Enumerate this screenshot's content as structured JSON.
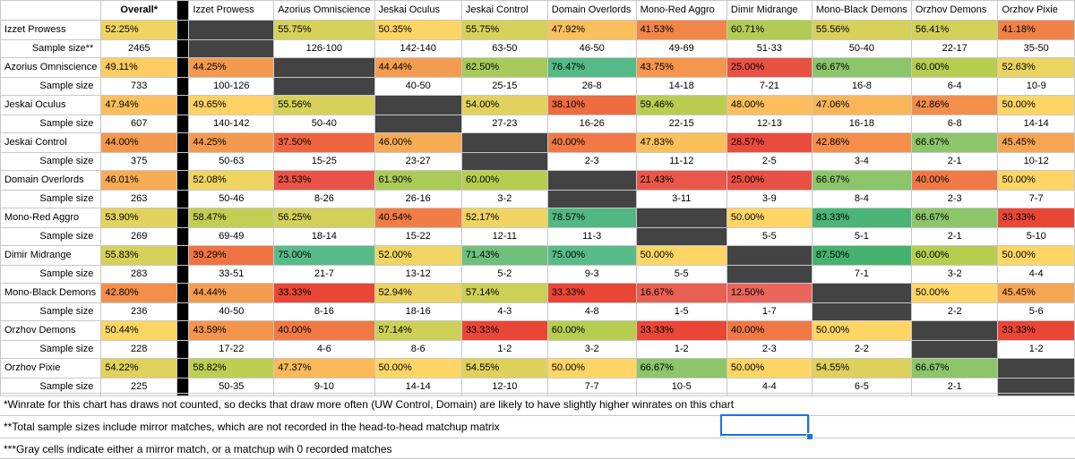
{
  "overall_header": "Overall*",
  "sample_label_first": "Sample size**",
  "sample_label": "Sample size",
  "decks": [
    "Izzet Prowess",
    "Azorius Omniscience",
    "Jeskai Oculus",
    "Jeskai Control",
    "Domain Overlords",
    "Mono-Red Aggro",
    "Dimir Midrange",
    "Mono-Black Demons",
    "Orzhov Demons",
    "Orzhov Pixie"
  ],
  "rows": [
    {
      "name": "Izzet Prowess",
      "overall": "52.25%",
      "sample": "2465",
      "wr": [
        null,
        "55.75%",
        "50.35%",
        "55.75%",
        "47.92%",
        "41.53%",
        "60.71%",
        "55.56%",
        "56.41%",
        "41.18%"
      ],
      "n": [
        null,
        "126-100",
        "142-140",
        "63-50",
        "46-50",
        "49-69",
        "51-33",
        "50-40",
        "22-17",
        "35-50"
      ]
    },
    {
      "name": "Azorius Omniscience",
      "overall": "49.11%",
      "sample": "733",
      "wr": [
        "44.25%",
        null,
        "44.44%",
        "62.50%",
        "76.47%",
        "43.75%",
        "25.00%",
        "66.67%",
        "60.00%",
        "52.63%"
      ],
      "n": [
        "100-126",
        null,
        "40-50",
        "25-15",
        "26-8",
        "14-18",
        "7-21",
        "16-8",
        "6-4",
        "10-9"
      ]
    },
    {
      "name": "Jeskai Oculus",
      "overall": "47.94%",
      "sample": "607",
      "wr": [
        "49.65%",
        "55.56%",
        null,
        "54.00%",
        "38.10%",
        "59.46%",
        "48.00%",
        "47.06%",
        "42.86%",
        "50.00%"
      ],
      "n": [
        "140-142",
        "50-40",
        null,
        "27-23",
        "16-26",
        "22-15",
        "12-13",
        "16-18",
        "6-8",
        "14-14"
      ]
    },
    {
      "name": "Jeskai Control",
      "overall": "44.00%",
      "sample": "375",
      "wr": [
        "44.25%",
        "37.50%",
        "46.00%",
        null,
        "40.00%",
        "47.83%",
        "28.57%",
        "42.86%",
        "66.67%",
        "45.45%"
      ],
      "n": [
        "50-63",
        "15-25",
        "23-27",
        null,
        "2-3",
        "11-12",
        "2-5",
        "3-4",
        "2-1",
        "10-12"
      ]
    },
    {
      "name": "Domain Overlords",
      "overall": "46.01%",
      "sample": "263",
      "wr": [
        "52.08%",
        "23.53%",
        "61.90%",
        "60.00%",
        null,
        "21.43%",
        "25.00%",
        "66.67%",
        "40.00%",
        "50.00%"
      ],
      "n": [
        "50-46",
        "8-26",
        "26-16",
        "3-2",
        null,
        "3-11",
        "3-9",
        "8-4",
        "2-3",
        "7-7"
      ]
    },
    {
      "name": "Mono-Red Aggro",
      "overall": "53.90%",
      "sample": "269",
      "wr": [
        "58.47%",
        "56.25%",
        "40.54%",
        "52.17%",
        "78.57%",
        null,
        "50.00%",
        "83.33%",
        "66.67%",
        "33.33%"
      ],
      "n": [
        "69-49",
        "18-14",
        "15-22",
        "12-11",
        "11-3",
        null,
        "5-5",
        "5-1",
        "2-1",
        "5-10"
      ]
    },
    {
      "name": "Dimir Midrange",
      "overall": "55.83%",
      "sample": "283",
      "wr": [
        "39.29%",
        "75.00%",
        "52.00%",
        "71.43%",
        "75.00%",
        "50.00%",
        null,
        "87.50%",
        "60.00%",
        "50.00%"
      ],
      "n": [
        "33-51",
        "21-7",
        "13-12",
        "5-2",
        "9-3",
        "5-5",
        null,
        "7-1",
        "3-2",
        "4-4"
      ]
    },
    {
      "name": "Mono-Black Demons",
      "overall": "42.80%",
      "sample": "236",
      "wr": [
        "44.44%",
        "33.33%",
        "52.94%",
        "57.14%",
        "33.33%",
        "16.67%",
        "12.50%",
        null,
        "50.00%",
        "45.45%"
      ],
      "n": [
        "40-50",
        "8-16",
        "18-16",
        "4-3",
        "4-8",
        "1-5",
        "1-7",
        null,
        "2-2",
        "5-6"
      ]
    },
    {
      "name": "Orzhov Demons",
      "overall": "50.44%",
      "sample": "228",
      "wr": [
        "43.59%",
        "40.00%",
        "57.14%",
        "33.33%",
        "60.00%",
        "33.33%",
        "40.00%",
        "50.00%",
        null,
        "33.33%"
      ],
      "n": [
        "17-22",
        "4-6",
        "8-6",
        "1-2",
        "3-2",
        "1-2",
        "2-3",
        "2-2",
        null,
        "1-2"
      ]
    },
    {
      "name": "Orzhov Pixie",
      "overall": "54.22%",
      "sample": "225",
      "wr": [
        "58.82%",
        "47.37%",
        "50.00%",
        "54.55%",
        "50.00%",
        "66.67%",
        "50.00%",
        "54.55%",
        "66.67%",
        null
      ],
      "n": [
        "50-35",
        "9-10",
        "14-14",
        "12-10",
        "7-7",
        "10-5",
        "4-4",
        "6-5",
        "2-1",
        null
      ]
    }
  ],
  "notes": [
    "*Winrate for this chart has draws not counted, so decks that draw more often (UW Control, Domain) are likely to have slightly higher winrates on this chart",
    "**Total sample sizes include mirror matches, which are not recorded in the head-to-head matchup matrix",
    "***Gray cells indicate either a mirror match, or a matchup wih 0 recorded matches"
  ],
  "colors": {
    "black_col": "#000000",
    "mirror": "#434343",
    "grid": "#c8c8c8",
    "selection": "#1a73e8"
  }
}
